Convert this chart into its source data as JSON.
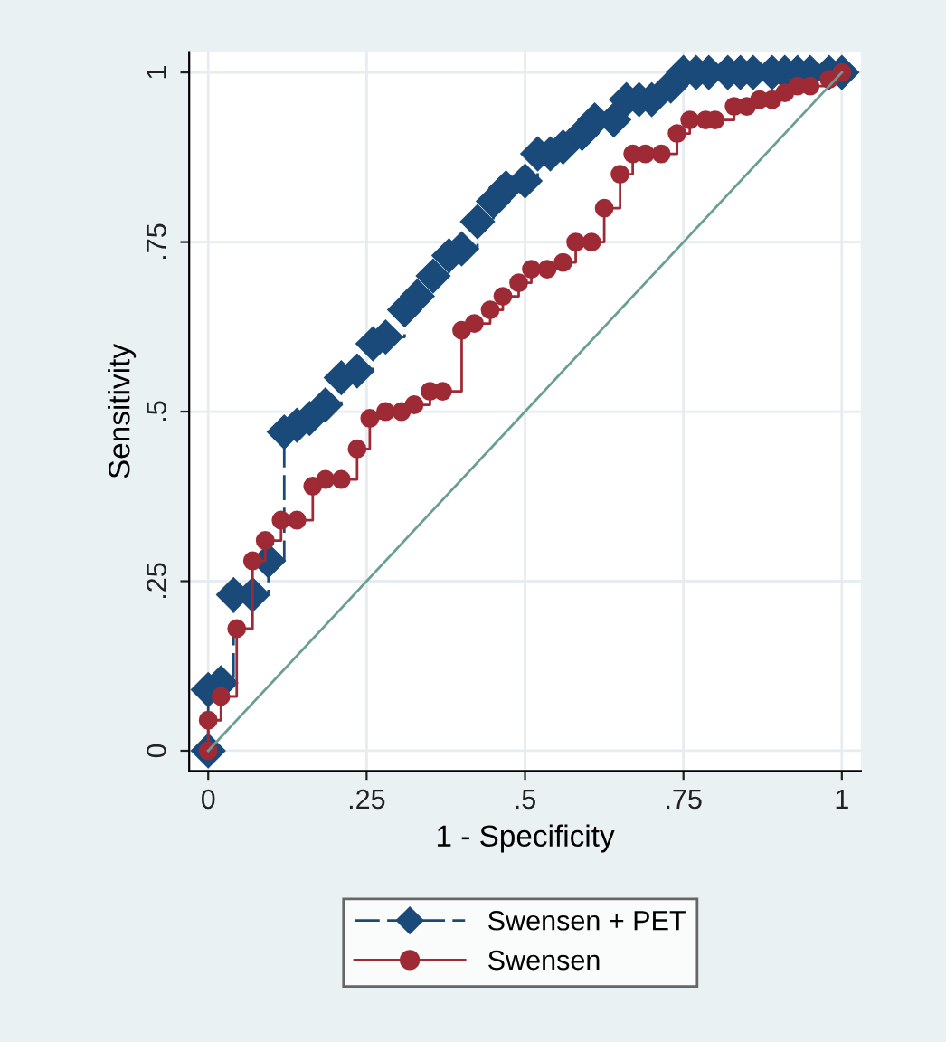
{
  "chart_data": {
    "type": "step",
    "xlabel": "1 - Specificity",
    "ylabel": "Sensitivity",
    "xlim": [
      -0.03,
      1.03
    ],
    "ylim": [
      -0.03,
      1.03
    ],
    "xticks": [
      0,
      {
        "value": 0.25,
        "label": ".25"
      },
      {
        "value": 0.5,
        "label": ".5"
      },
      {
        "value": 0.75,
        "label": ".75"
      },
      1
    ],
    "yticks": [
      0,
      {
        "value": 0.25,
        "label": ".25"
      },
      {
        "value": 0.5,
        "label": ".5"
      },
      {
        "value": 0.75,
        "label": ".75"
      },
      1
    ],
    "grid": true,
    "legend": "bottom",
    "series": [
      {
        "name": "Swensen + PET",
        "color": "#1a4a7a",
        "marker": "diamond",
        "line_style": "dashed",
        "x": [
          0,
          0,
          0.02,
          0.04,
          0.07,
          0.095,
          0.12,
          0.14,
          0.16,
          0.185,
          0.21,
          0.235,
          0.26,
          0.28,
          0.31,
          0.33,
          0.355,
          0.38,
          0.4,
          0.425,
          0.45,
          0.47,
          0.5,
          0.52,
          0.54,
          0.56,
          0.59,
          0.61,
          0.64,
          0.66,
          0.68,
          0.7,
          0.73,
          0.75,
          0.77,
          0.79,
          0.82,
          0.84,
          0.86,
          0.89,
          0.91,
          0.93,
          0.95,
          0.98,
          1
        ],
        "values": [
          0,
          0.09,
          0.1,
          0.23,
          0.23,
          0.28,
          0.47,
          0.48,
          0.49,
          0.51,
          0.55,
          0.56,
          0.6,
          0.61,
          0.65,
          0.67,
          0.7,
          0.73,
          0.74,
          0.78,
          0.81,
          0.83,
          0.84,
          0.88,
          0.88,
          0.89,
          0.91,
          0.93,
          0.93,
          0.96,
          0.96,
          0.96,
          0.98,
          1,
          1,
          1,
          1,
          1,
          1,
          1,
          1,
          1,
          1,
          1,
          1
        ]
      },
      {
        "name": "Swensen",
        "color": "#9e2a35",
        "marker": "circle",
        "line_style": "solid",
        "x": [
          0,
          0,
          0.02,
          0.045,
          0.07,
          0.09,
          0.115,
          0.14,
          0.165,
          0.185,
          0.21,
          0.235,
          0.255,
          0.28,
          0.305,
          0.325,
          0.35,
          0.37,
          0.4,
          0.42,
          0.445,
          0.465,
          0.49,
          0.51,
          0.535,
          0.56,
          0.58,
          0.605,
          0.625,
          0.65,
          0.67,
          0.69,
          0.715,
          0.74,
          0.76,
          0.785,
          0.8,
          0.83,
          0.85,
          0.87,
          0.89,
          0.91,
          0.93,
          0.95,
          0.98,
          1
        ],
        "values": [
          0,
          0.045,
          0.08,
          0.18,
          0.28,
          0.31,
          0.34,
          0.34,
          0.39,
          0.4,
          0.4,
          0.445,
          0.49,
          0.5,
          0.5,
          0.51,
          0.53,
          0.53,
          0.62,
          0.63,
          0.65,
          0.67,
          0.69,
          0.71,
          0.71,
          0.72,
          0.75,
          0.75,
          0.8,
          0.85,
          0.88,
          0.88,
          0.88,
          0.91,
          0.93,
          0.93,
          0.93,
          0.95,
          0.95,
          0.96,
          0.96,
          0.97,
          0.98,
          0.98,
          0.99,
          1
        ]
      },
      {
        "type": "line",
        "color": "#6a9e94",
        "marker": "none",
        "line_style": "solid",
        "x": [
          0,
          1
        ],
        "values": [
          0,
          1
        ]
      }
    ]
  }
}
